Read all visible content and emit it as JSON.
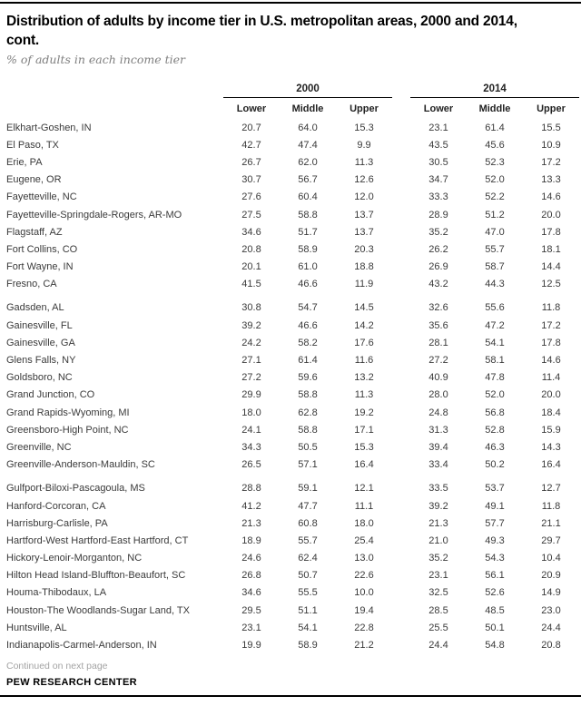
{
  "header": {
    "title_line1": "Distribution of adults by income tier in U.S. metropolitan areas, 2000 and 2014,",
    "title_line2": "cont.",
    "subtitle": "% of adults in each income tier"
  },
  "footer": {
    "continued": "Continued on next page",
    "source": "PEW RESEARCH CENTER"
  },
  "colors": {
    "rule": "#000000",
    "title_text": "#000000",
    "subtitle_gray": "#7f7f7f",
    "body_text": "#3a3a3a",
    "muted_gray": "#a3a3a3",
    "background": "#ffffff"
  },
  "chart_data": {
    "type": "table",
    "title": "Distribution of adults by income tier in U.S. metropolitan areas, 2000 and 2014, cont.",
    "subtitle": "% of adults in each income tier",
    "column_groups": [
      "2000",
      "2014"
    ],
    "columns": [
      "Lower",
      "Middle",
      "Upper",
      "Lower",
      "Middle",
      "Upper"
    ],
    "row_groups": [
      {
        "rows": [
          {
            "area": "Elkhart-Goshen, IN",
            "values": [
              20.7,
              64.0,
              15.3,
              23.1,
              61.4,
              15.5
            ]
          },
          {
            "area": "El Paso, TX",
            "values": [
              42.7,
              47.4,
              9.9,
              43.5,
              45.6,
              10.9
            ]
          },
          {
            "area": "Erie, PA",
            "values": [
              26.7,
              62.0,
              11.3,
              30.5,
              52.3,
              17.2
            ]
          },
          {
            "area": "Eugene, OR",
            "values": [
              30.7,
              56.7,
              12.6,
              34.7,
              52.0,
              13.3
            ]
          },
          {
            "area": "Fayetteville, NC",
            "values": [
              27.6,
              60.4,
              12.0,
              33.3,
              52.2,
              14.6
            ]
          },
          {
            "area": "Fayetteville-Springdale-Rogers, AR-MO",
            "values": [
              27.5,
              58.8,
              13.7,
              28.9,
              51.2,
              20.0
            ]
          },
          {
            "area": "Flagstaff, AZ",
            "values": [
              34.6,
              51.7,
              13.7,
              35.2,
              47.0,
              17.8
            ]
          },
          {
            "area": "Fort Collins, CO",
            "values": [
              20.8,
              58.9,
              20.3,
              26.2,
              55.7,
              18.1
            ]
          },
          {
            "area": "Fort Wayne, IN",
            "values": [
              20.1,
              61.0,
              18.8,
              26.9,
              58.7,
              14.4
            ]
          },
          {
            "area": "Fresno, CA",
            "values": [
              41.5,
              46.6,
              11.9,
              43.2,
              44.3,
              12.5
            ]
          }
        ]
      },
      {
        "rows": [
          {
            "area": "Gadsden, AL",
            "values": [
              30.8,
              54.7,
              14.5,
              32.6,
              55.6,
              11.8
            ]
          },
          {
            "area": "Gainesville, FL",
            "values": [
              39.2,
              46.6,
              14.2,
              35.6,
              47.2,
              17.2
            ]
          },
          {
            "area": "Gainesville, GA",
            "values": [
              24.2,
              58.2,
              17.6,
              28.1,
              54.1,
              17.8
            ]
          },
          {
            "area": "Glens Falls, NY",
            "values": [
              27.1,
              61.4,
              11.6,
              27.2,
              58.1,
              14.6
            ]
          },
          {
            "area": "Goldsboro, NC",
            "values": [
              27.2,
              59.6,
              13.2,
              40.9,
              47.8,
              11.4
            ]
          },
          {
            "area": "Grand Junction, CO",
            "values": [
              29.9,
              58.8,
              11.3,
              28.0,
              52.0,
              20.0
            ]
          },
          {
            "area": "Grand Rapids-Wyoming, MI",
            "values": [
              18.0,
              62.8,
              19.2,
              24.8,
              56.8,
              18.4
            ]
          },
          {
            "area": "Greensboro-High Point, NC",
            "values": [
              24.1,
              58.8,
              17.1,
              31.3,
              52.8,
              15.9
            ]
          },
          {
            "area": "Greenville, NC",
            "values": [
              34.3,
              50.5,
              15.3,
              39.4,
              46.3,
              14.3
            ]
          },
          {
            "area": "Greenville-Anderson-Mauldin, SC",
            "values": [
              26.5,
              57.1,
              16.4,
              33.4,
              50.2,
              16.4
            ]
          }
        ]
      },
      {
        "rows": [
          {
            "area": "Gulfport-Biloxi-Pascagoula, MS",
            "values": [
              28.8,
              59.1,
              12.1,
              33.5,
              53.7,
              12.7
            ]
          },
          {
            "area": "Hanford-Corcoran, CA",
            "values": [
              41.2,
              47.7,
              11.1,
              39.2,
              49.1,
              11.8
            ]
          },
          {
            "area": "Harrisburg-Carlisle, PA",
            "values": [
              21.3,
              60.8,
              18.0,
              21.3,
              57.7,
              21.1
            ]
          },
          {
            "area": "Hartford-West Hartford-East Hartford, CT",
            "values": [
              18.9,
              55.7,
              25.4,
              21.0,
              49.3,
              29.7
            ]
          },
          {
            "area": "Hickory-Lenoir-Morganton, NC",
            "values": [
              24.6,
              62.4,
              13.0,
              35.2,
              54.3,
              10.4
            ]
          },
          {
            "area": "Hilton Head Island-Bluffton-Beaufort, SC",
            "values": [
              26.8,
              50.7,
              22.6,
              23.1,
              56.1,
              20.9
            ]
          },
          {
            "area": "Houma-Thibodaux, LA",
            "values": [
              34.6,
              55.5,
              10.0,
              32.5,
              52.6,
              14.9
            ]
          },
          {
            "area": "Houston-The Woodlands-Sugar Land, TX",
            "values": [
              29.5,
              51.1,
              19.4,
              28.5,
              48.5,
              23.0
            ]
          },
          {
            "area": "Huntsville, AL",
            "values": [
              23.1,
              54.1,
              22.8,
              25.5,
              50.1,
              24.4
            ]
          },
          {
            "area": "Indianapolis-Carmel-Anderson, IN",
            "values": [
              19.9,
              58.9,
              21.2,
              24.4,
              54.8,
              20.8
            ]
          }
        ]
      }
    ]
  }
}
